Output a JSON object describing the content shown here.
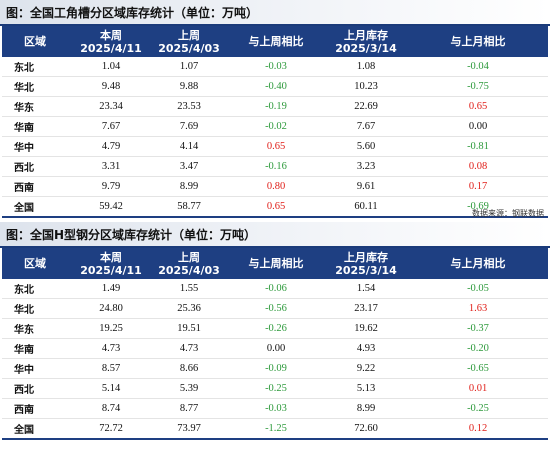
{
  "table1": {
    "title": "图：全国工角槽分区域库存统计（单位：万吨）",
    "headers": {
      "region": "区域",
      "this_week_label": "本周",
      "this_week_date": "2025/4/11",
      "last_week_label": "上周",
      "last_week_date": "2025/4/03",
      "wow": "与上周相比",
      "last_month_label": "上月库存",
      "last_month_date": "2025/3/14",
      "mom": "与上月相比"
    },
    "rows": [
      {
        "region": "东北",
        "this_week": "1.04",
        "last_week": "1.07",
        "wow": "-0.03",
        "last_month": "1.08",
        "mom": "-0.04"
      },
      {
        "region": "华北",
        "this_week": "9.48",
        "last_week": "9.88",
        "wow": "-0.40",
        "last_month": "10.23",
        "mom": "-0.75"
      },
      {
        "region": "华东",
        "this_week": "23.34",
        "last_week": "23.53",
        "wow": "-0.19",
        "last_month": "22.69",
        "mom": "0.65"
      },
      {
        "region": "华南",
        "this_week": "7.67",
        "last_week": "7.69",
        "wow": "-0.02",
        "last_month": "7.67",
        "mom": "0.00"
      },
      {
        "region": "华中",
        "this_week": "4.79",
        "last_week": "4.14",
        "wow": "0.65",
        "last_month": "5.60",
        "mom": "-0.81"
      },
      {
        "region": "西北",
        "this_week": "3.31",
        "last_week": "3.47",
        "wow": "-0.16",
        "last_month": "3.23",
        "mom": "0.08"
      },
      {
        "region": "西南",
        "this_week": "9.79",
        "last_week": "8.99",
        "wow": "0.80",
        "last_month": "9.61",
        "mom": "0.17"
      },
      {
        "region": "全国",
        "this_week": "59.42",
        "last_week": "58.77",
        "wow": "0.65",
        "last_month": "60.11",
        "mom": "-0.69"
      }
    ],
    "source": "数据来源：钢联数据"
  },
  "table2": {
    "title": "图：全国H型钢分区域库存统计（单位：万吨）",
    "headers": {
      "region": "区域",
      "this_week_label": "本周",
      "this_week_date": "2025/4/11",
      "last_week_label": "上周",
      "last_week_date": "2025/4/03",
      "wow": "与上周相比",
      "last_month_label": "上月库存",
      "last_month_date": "2025/3/14",
      "mom": "与上月相比"
    },
    "rows": [
      {
        "region": "东北",
        "this_week": "1.49",
        "last_week": "1.55",
        "wow": "-0.06",
        "last_month": "1.54",
        "mom": "-0.05"
      },
      {
        "region": "华北",
        "this_week": "24.80",
        "last_week": "25.36",
        "wow": "-0.56",
        "last_month": "23.17",
        "mom": "1.63"
      },
      {
        "region": "华东",
        "this_week": "19.25",
        "last_week": "19.51",
        "wow": "-0.26",
        "last_month": "19.62",
        "mom": "-0.37"
      },
      {
        "region": "华南",
        "this_week": "4.73",
        "last_week": "4.73",
        "wow": "0.00",
        "last_month": "4.93",
        "mom": "-0.20"
      },
      {
        "region": "华中",
        "this_week": "8.57",
        "last_week": "8.66",
        "wow": "-0.09",
        "last_month": "9.22",
        "mom": "-0.65"
      },
      {
        "region": "西北",
        "this_week": "5.14",
        "last_week": "5.39",
        "wow": "-0.25",
        "last_month": "5.13",
        "mom": "0.01"
      },
      {
        "region": "西南",
        "this_week": "8.74",
        "last_week": "8.77",
        "wow": "-0.03",
        "last_month": "8.99",
        "mom": "-0.25"
      },
      {
        "region": "全国",
        "this_week": "72.72",
        "last_week": "73.97",
        "wow": "-1.25",
        "last_month": "72.60",
        "mom": "0.12"
      }
    ]
  },
  "colors": {
    "header_bg": "#1e3f82",
    "positive": "#e0201a",
    "negative": "#2e9a3c",
    "zero": "#111111"
  }
}
